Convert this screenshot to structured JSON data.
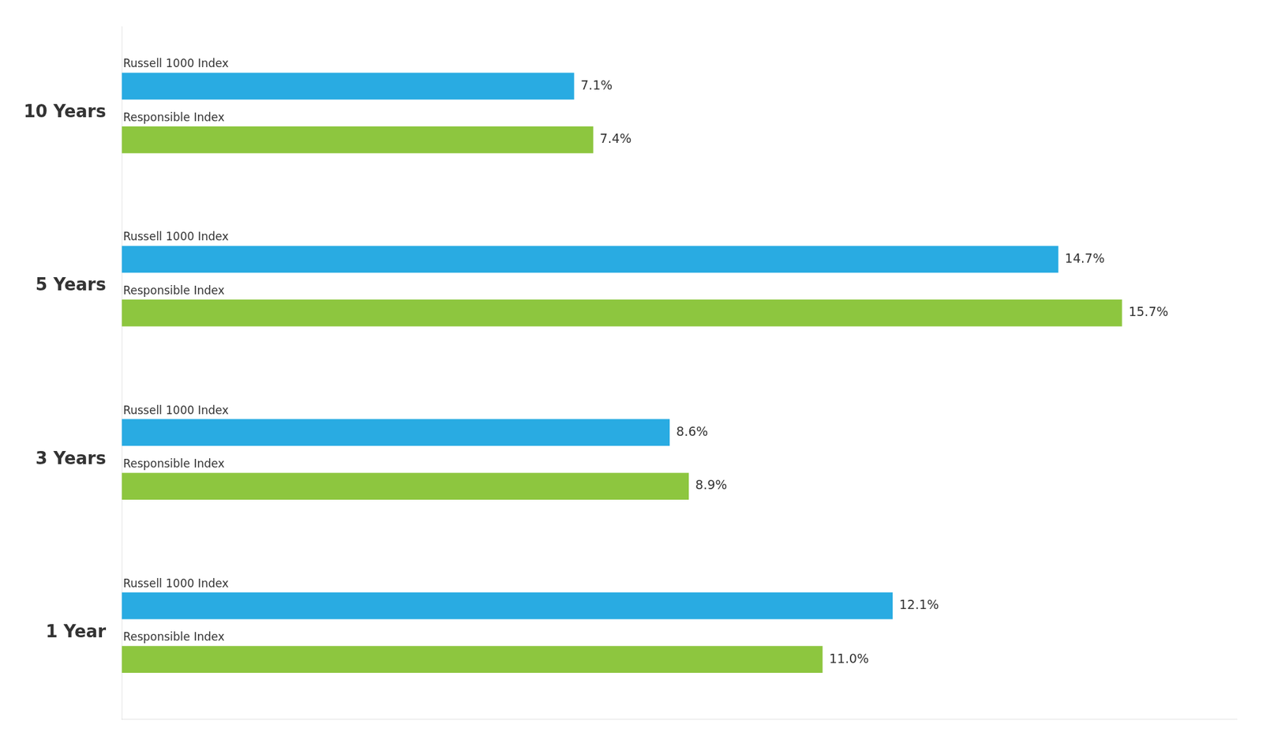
{
  "chart_data": {
    "type": "bar",
    "orientation": "horizontal",
    "categories": [
      "10 Years",
      "5 Years",
      "3 Years",
      "1 Year"
    ],
    "series": [
      {
        "name": "Russell 1000 Index",
        "color": "#29ABE2",
        "values": [
          7.1,
          14.7,
          8.6,
          12.1
        ],
        "value_labels": [
          "7.1%",
          "14.7%",
          "8.6%",
          "12.1%"
        ]
      },
      {
        "name": "Responsible Index",
        "color": "#8DC63F",
        "values": [
          7.4,
          15.7,
          8.9,
          11.0
        ],
        "value_labels": [
          "7.4%",
          "15.7%",
          "8.9%",
          "11.0%"
        ]
      }
    ],
    "xlim": [
      0,
      17.5
    ],
    "grid": false,
    "data_labels": true,
    "tick_labels": "y"
  }
}
